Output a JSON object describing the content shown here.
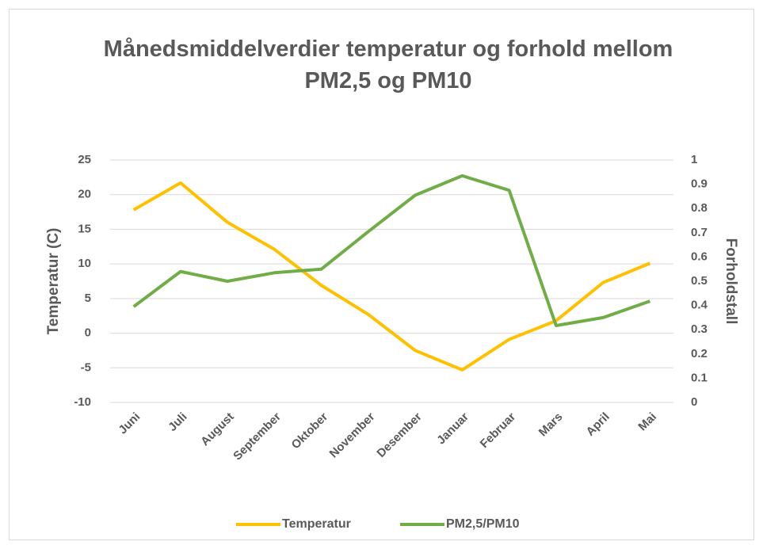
{
  "chart_data": {
    "type": "line",
    "title": "Månedsmiddelverdier temperatur og forhold mellom PM2,5 og PM10",
    "ylabel": "Temperatur (C)",
    "y2label": "Forholdstall",
    "categories": [
      "Juni",
      "Juli",
      "August",
      "September",
      "Oktober",
      "November",
      "Desember",
      "Januar",
      "Februar",
      "Mars",
      "April",
      "Mai"
    ],
    "series": [
      {
        "name": "Temperatur",
        "color": "#ffc000",
        "values": [
          17.8,
          21.7,
          16.0,
          12.1,
          6.9,
          2.7,
          -2.5,
          -5.3,
          -0.9,
          1.8,
          7.3,
          10.1
        ]
      },
      {
        "name": "PM2,5/PM10",
        "color": "#70ad47",
        "axis": "y2",
        "values": [
          0.395,
          0.54,
          0.5,
          0.535,
          0.55,
          0.705,
          0.855,
          0.935,
          0.875,
          0.317,
          0.35,
          0.418
        ]
      }
    ],
    "ylim": [
      -10,
      25
    ],
    "yticks": [
      -10,
      -5,
      0,
      5,
      10,
      15,
      20,
      25
    ],
    "y2lim": [
      0,
      1
    ],
    "y2ticks": [
      0,
      0.1,
      0.2,
      0.3,
      0.4,
      0.5,
      0.6,
      0.7,
      0.8,
      0.9,
      1
    ],
    "grid": true,
    "legend": "bottom"
  }
}
